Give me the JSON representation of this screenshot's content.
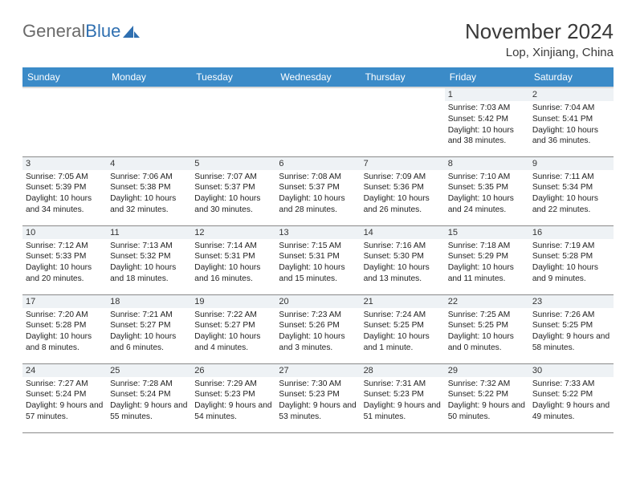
{
  "brand": {
    "word1": "General",
    "word2": "Blue"
  },
  "title": "November 2024",
  "location": "Lop, Xinjiang, China",
  "colors": {
    "header_bg": "#3b8bc8",
    "header_text": "#ffffff",
    "daynum_bg": "#eef2f5",
    "border": "#8a8a8a",
    "logo_gray": "#6a6a6a",
    "logo_blue": "#2f6fb0"
  },
  "weekdays": [
    "Sunday",
    "Monday",
    "Tuesday",
    "Wednesday",
    "Thursday",
    "Friday",
    "Saturday"
  ],
  "weeks": [
    [
      {
        "day": null
      },
      {
        "day": null
      },
      {
        "day": null
      },
      {
        "day": null
      },
      {
        "day": null
      },
      {
        "day": 1,
        "sunrise": "7:03 AM",
        "sunset": "5:42 PM",
        "daylight": "10 hours and 38 minutes."
      },
      {
        "day": 2,
        "sunrise": "7:04 AM",
        "sunset": "5:41 PM",
        "daylight": "10 hours and 36 minutes."
      }
    ],
    [
      {
        "day": 3,
        "sunrise": "7:05 AM",
        "sunset": "5:39 PM",
        "daylight": "10 hours and 34 minutes."
      },
      {
        "day": 4,
        "sunrise": "7:06 AM",
        "sunset": "5:38 PM",
        "daylight": "10 hours and 32 minutes."
      },
      {
        "day": 5,
        "sunrise": "7:07 AM",
        "sunset": "5:37 PM",
        "daylight": "10 hours and 30 minutes."
      },
      {
        "day": 6,
        "sunrise": "7:08 AM",
        "sunset": "5:37 PM",
        "daylight": "10 hours and 28 minutes."
      },
      {
        "day": 7,
        "sunrise": "7:09 AM",
        "sunset": "5:36 PM",
        "daylight": "10 hours and 26 minutes."
      },
      {
        "day": 8,
        "sunrise": "7:10 AM",
        "sunset": "5:35 PM",
        "daylight": "10 hours and 24 minutes."
      },
      {
        "day": 9,
        "sunrise": "7:11 AM",
        "sunset": "5:34 PM",
        "daylight": "10 hours and 22 minutes."
      }
    ],
    [
      {
        "day": 10,
        "sunrise": "7:12 AM",
        "sunset": "5:33 PM",
        "daylight": "10 hours and 20 minutes."
      },
      {
        "day": 11,
        "sunrise": "7:13 AM",
        "sunset": "5:32 PM",
        "daylight": "10 hours and 18 minutes."
      },
      {
        "day": 12,
        "sunrise": "7:14 AM",
        "sunset": "5:31 PM",
        "daylight": "10 hours and 16 minutes."
      },
      {
        "day": 13,
        "sunrise": "7:15 AM",
        "sunset": "5:31 PM",
        "daylight": "10 hours and 15 minutes."
      },
      {
        "day": 14,
        "sunrise": "7:16 AM",
        "sunset": "5:30 PM",
        "daylight": "10 hours and 13 minutes."
      },
      {
        "day": 15,
        "sunrise": "7:18 AM",
        "sunset": "5:29 PM",
        "daylight": "10 hours and 11 minutes."
      },
      {
        "day": 16,
        "sunrise": "7:19 AM",
        "sunset": "5:28 PM",
        "daylight": "10 hours and 9 minutes."
      }
    ],
    [
      {
        "day": 17,
        "sunrise": "7:20 AM",
        "sunset": "5:28 PM",
        "daylight": "10 hours and 8 minutes."
      },
      {
        "day": 18,
        "sunrise": "7:21 AM",
        "sunset": "5:27 PM",
        "daylight": "10 hours and 6 minutes."
      },
      {
        "day": 19,
        "sunrise": "7:22 AM",
        "sunset": "5:27 PM",
        "daylight": "10 hours and 4 minutes."
      },
      {
        "day": 20,
        "sunrise": "7:23 AM",
        "sunset": "5:26 PM",
        "daylight": "10 hours and 3 minutes."
      },
      {
        "day": 21,
        "sunrise": "7:24 AM",
        "sunset": "5:25 PM",
        "daylight": "10 hours and 1 minute."
      },
      {
        "day": 22,
        "sunrise": "7:25 AM",
        "sunset": "5:25 PM",
        "daylight": "10 hours and 0 minutes."
      },
      {
        "day": 23,
        "sunrise": "7:26 AM",
        "sunset": "5:25 PM",
        "daylight": "9 hours and 58 minutes."
      }
    ],
    [
      {
        "day": 24,
        "sunrise": "7:27 AM",
        "sunset": "5:24 PM",
        "daylight": "9 hours and 57 minutes."
      },
      {
        "day": 25,
        "sunrise": "7:28 AM",
        "sunset": "5:24 PM",
        "daylight": "9 hours and 55 minutes."
      },
      {
        "day": 26,
        "sunrise": "7:29 AM",
        "sunset": "5:23 PM",
        "daylight": "9 hours and 54 minutes."
      },
      {
        "day": 27,
        "sunrise": "7:30 AM",
        "sunset": "5:23 PM",
        "daylight": "9 hours and 53 minutes."
      },
      {
        "day": 28,
        "sunrise": "7:31 AM",
        "sunset": "5:23 PM",
        "daylight": "9 hours and 51 minutes."
      },
      {
        "day": 29,
        "sunrise": "7:32 AM",
        "sunset": "5:22 PM",
        "daylight": "9 hours and 50 minutes."
      },
      {
        "day": 30,
        "sunrise": "7:33 AM",
        "sunset": "5:22 PM",
        "daylight": "9 hours and 49 minutes."
      }
    ]
  ],
  "labels": {
    "sunrise": "Sunrise: ",
    "sunset": "Sunset: ",
    "daylight": "Daylight: "
  }
}
